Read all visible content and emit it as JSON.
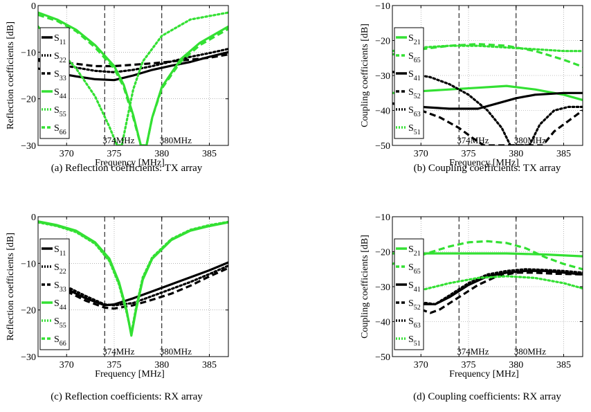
{
  "chart_data": [
    {
      "type": "line",
      "caption": "(a) Reflection coefficients: TX array",
      "xlabel": "Frequency [MHz]",
      "ylabel": "Reflection coefficients [dB]",
      "xlim": [
        367,
        387
      ],
      "ylim": [
        -30,
        0
      ],
      "xticks": [
        370,
        375,
        380,
        385
      ],
      "yticks": [
        -30,
        -20,
        -10,
        0
      ],
      "grid": true,
      "legend_position": "left",
      "markers": [
        {
          "x": 374,
          "label": "374MHz"
        },
        {
          "x": 380,
          "label": "380MHz"
        }
      ],
      "series": [
        {
          "name": "S11",
          "sub": "11",
          "color": "#000000",
          "style": "solid",
          "x": [
            367,
            369,
            371,
            373,
            375,
            377,
            379,
            381,
            383,
            385,
            387
          ],
          "y": [
            -13.5,
            -14.5,
            -15.2,
            -15.8,
            -16.0,
            -15.0,
            -13.8,
            -12.9,
            -12.1,
            -11.0,
            -10.0
          ]
        },
        {
          "name": "S22",
          "sub": "22",
          "color": "#000000",
          "style": "dotted",
          "x": [
            367,
            369,
            371,
            373,
            375,
            377,
            379,
            381,
            383,
            385,
            387
          ],
          "y": [
            -11.8,
            -12.6,
            -13.3,
            -14.0,
            -14.3,
            -13.8,
            -13.0,
            -12.0,
            -11.0,
            -10.2,
            -9.3
          ]
        },
        {
          "name": "S33",
          "sub": "33",
          "color": "#000000",
          "style": "dashed",
          "x": [
            367,
            369,
            371,
            373,
            375,
            377,
            379,
            381,
            383,
            385,
            387
          ],
          "y": [
            -11.5,
            -12.0,
            -12.5,
            -13.0,
            -13.0,
            -12.7,
            -12.4,
            -12.0,
            -11.6,
            -11.2,
            -10.5
          ]
        },
        {
          "name": "S44",
          "sub": "44",
          "color": "#33e033",
          "style": "solid",
          "x": [
            367,
            369,
            371,
            373,
            375,
            376,
            377,
            377.8,
            378.4,
            379,
            380,
            382,
            384,
            387
          ],
          "y": [
            -1.5,
            -3.0,
            -5.2,
            -8.5,
            -13.0,
            -17.0,
            -23.5,
            -30.0,
            -30.0,
            -24.0,
            -17.5,
            -11.5,
            -8.0,
            -4.5
          ]
        },
        {
          "name": "S55",
          "sub": "55",
          "color": "#33e033",
          "style": "dotted",
          "x": [
            367,
            369,
            371,
            373,
            374.5,
            375.3,
            375.8,
            376.4,
            377,
            378,
            380,
            383,
            387
          ],
          "y": [
            -4.5,
            -9.0,
            -13.5,
            -19.5,
            -26.0,
            -30.0,
            -30.0,
            -24.0,
            -18.0,
            -12.0,
            -6.5,
            -3.0,
            -1.5
          ]
        },
        {
          "name": "S66",
          "sub": "66",
          "color": "#33e033",
          "style": "dashed",
          "x": [
            367,
            369,
            371,
            373,
            375,
            376,
            377,
            377.8,
            378.4,
            379,
            380,
            382,
            384,
            387
          ],
          "y": [
            -2.0,
            -3.3,
            -5.5,
            -9.0,
            -13.5,
            -17.5,
            -24.0,
            -30.0,
            -30.0,
            -24.0,
            -17.8,
            -12.0,
            -8.5,
            -5.0
          ]
        }
      ]
    },
    {
      "type": "line",
      "caption": "(b) Coupling coefficients: TX array",
      "xlabel": "Frequency [MHz]",
      "ylabel": "Coupling coefficients [dB]",
      "xlim": [
        367,
        387
      ],
      "ylim": [
        -50,
        -10
      ],
      "xticks": [
        370,
        375,
        380,
        385
      ],
      "yticks": [
        -50,
        -40,
        -30,
        -20,
        -10
      ],
      "grid": true,
      "legend_position": "left",
      "markers": [
        {
          "x": 374,
          "label": "374MHz"
        },
        {
          "x": 380,
          "label": "380MHz"
        }
      ],
      "series": [
        {
          "name": "S21",
          "sub": "21",
          "color": "#33e033",
          "style": "solid",
          "x": [
            367,
            370,
            373,
            376,
            379,
            382,
            385,
            387
          ],
          "y": [
            -35.0,
            -34.5,
            -34.0,
            -33.5,
            -33.0,
            -34.0,
            -35.5,
            -37.0
          ]
        },
        {
          "name": "S65",
          "sub": "65",
          "color": "#33e033",
          "style": "dashed",
          "x": [
            367,
            370,
            373,
            376,
            379,
            382,
            385,
            387
          ],
          "y": [
            -24.0,
            -22.5,
            -21.5,
            -21.0,
            -21.5,
            -23.0,
            -25.5,
            -27.5
          ]
        },
        {
          "name": "S41",
          "sub": "41",
          "color": "#000000",
          "style": "solid",
          "x": [
            367,
            370,
            373,
            376,
            378,
            380,
            382,
            385,
            387
          ],
          "y": [
            -38.0,
            -39.0,
            -39.5,
            -39.5,
            -38.0,
            -36.5,
            -35.5,
            -35.0,
            -35.0
          ]
        },
        {
          "name": "S52",
          "sub": "52",
          "color": "#000000",
          "style": "dashed",
          "x": [
            367,
            370,
            372,
            374,
            375.5,
            376.6,
            377.2,
            382.8,
            384,
            385.5,
            387
          ],
          "y": [
            -38.0,
            -40.0,
            -42.0,
            -45.0,
            -48.0,
            -50.0,
            -50.0,
            -50.0,
            -46.0,
            -43.0,
            -40.0
          ]
        },
        {
          "name": "S63",
          "sub": "63",
          "color": "#000000",
          "style": "dotted",
          "x": [
            367,
            369,
            371,
            373,
            375,
            377,
            378.5,
            379.4,
            381.4,
            382.5,
            384,
            385.5,
            387
          ],
          "y": [
            -29.0,
            -29.5,
            -30.5,
            -32.5,
            -35.5,
            -40.0,
            -45.0,
            -50.0,
            -50.0,
            -44.0,
            -40.0,
            -39.0,
            -39.0
          ]
        },
        {
          "name": "S51",
          "sub": "51",
          "color": "#33e033",
          "style": "dotted",
          "x": [
            367,
            370,
            373,
            376,
            379,
            382,
            385,
            387
          ],
          "y": [
            -23.0,
            -22.0,
            -21.5,
            -21.5,
            -22.0,
            -22.5,
            -23.0,
            -23.0
          ]
        }
      ]
    },
    {
      "type": "line",
      "caption": "(c) Reflection coefficients: RX array",
      "xlabel": "Frequency [MHz]",
      "ylabel": "Reflection coefficients [dB]",
      "xlim": [
        367,
        387
      ],
      "ylim": [
        -30,
        0
      ],
      "xticks": [
        370,
        375,
        380,
        385
      ],
      "yticks": [
        -30,
        -20,
        -10,
        0
      ],
      "grid": true,
      "legend_position": "left",
      "markers": [
        {
          "x": 374,
          "label": "374MHz"
        },
        {
          "x": 380,
          "label": "380MHz"
        }
      ],
      "series": [
        {
          "name": "S11",
          "sub": "11",
          "color": "#000000",
          "style": "solid",
          "x": [
            370,
            372,
            374,
            375,
            377,
            379,
            381,
            383,
            385,
            387
          ],
          "y": [
            -15.5,
            -17.5,
            -19.0,
            -18.8,
            -17.5,
            -16.0,
            -14.5,
            -13.0,
            -11.5,
            -9.8
          ]
        },
        {
          "name": "S22",
          "sub": "22",
          "color": "#000000",
          "style": "dotted",
          "x": [
            370,
            372,
            374,
            375,
            377,
            379,
            381,
            383,
            385,
            387
          ],
          "y": [
            -15.0,
            -17.0,
            -18.8,
            -19.0,
            -18.5,
            -17.0,
            -15.5,
            -14.0,
            -12.3,
            -10.5
          ]
        },
        {
          "name": "S33",
          "sub": "33",
          "color": "#000000",
          "style": "dashed",
          "x": [
            370,
            372,
            374,
            375,
            377,
            379,
            381,
            383,
            385,
            387
          ],
          "y": [
            -16.0,
            -18.0,
            -19.5,
            -19.7,
            -19.0,
            -17.8,
            -16.5,
            -14.8,
            -12.8,
            -11.0
          ]
        },
        {
          "name": "S44",
          "sub": "44",
          "color": "#33e033",
          "style": "solid",
          "x": [
            367,
            369,
            371,
            373,
            374.5,
            375.5,
            376.3,
            376.8,
            377.3,
            378,
            379,
            381,
            383,
            385,
            387
          ],
          "y": [
            -1.0,
            -1.8,
            -3.0,
            -5.5,
            -9.0,
            -14.0,
            -20.0,
            -25.5,
            -20.0,
            -13.5,
            -9.0,
            -5.0,
            -3.0,
            -2.0,
            -1.2
          ]
        },
        {
          "name": "S55",
          "sub": "55",
          "color": "#33e033",
          "style": "dotted",
          "x": [
            367,
            369,
            371,
            373,
            374.5,
            375.5,
            376.3,
            376.8,
            377.3,
            378,
            379,
            381,
            383,
            385,
            387
          ],
          "y": [
            -1.2,
            -2.0,
            -3.3,
            -5.8,
            -9.5,
            -14.5,
            -20.5,
            -25.0,
            -19.5,
            -13.0,
            -8.7,
            -4.8,
            -2.8,
            -1.8,
            -1.1
          ]
        },
        {
          "name": "S66",
          "sub": "66",
          "color": "#33e033",
          "style": "dashed",
          "x": [
            367,
            369,
            371,
            373,
            374.5,
            375.5,
            376.3,
            376.8,
            377.3,
            378,
            379,
            381,
            383,
            385,
            387
          ],
          "y": [
            -1.1,
            -1.9,
            -3.1,
            -5.6,
            -9.2,
            -14.2,
            -20.2,
            -25.2,
            -19.8,
            -13.3,
            -8.9,
            -4.9,
            -2.9,
            -1.9,
            -1.15
          ]
        }
      ]
    },
    {
      "type": "line",
      "caption": "(d) Coupling coefficients: RX array",
      "xlabel": "Frequency [MHz]",
      "ylabel": "Coupling coefficients [dB]",
      "xlim": [
        367,
        387
      ],
      "ylim": [
        -50,
        -10
      ],
      "xticks": [
        370,
        375,
        380,
        385
      ],
      "yticks": [
        -50,
        -40,
        -30,
        -20,
        -10
      ],
      "grid": true,
      "legend_position": "left",
      "markers": [
        {
          "x": 374,
          "label": "374MHz"
        },
        {
          "x": 380,
          "label": "380MHz"
        }
      ],
      "series": [
        {
          "name": "S21",
          "sub": "21",
          "color": "#33e033",
          "style": "solid",
          "x": [
            367,
            371,
            375,
            379,
            383,
            387
          ],
          "y": [
            -20.5,
            -20.5,
            -20.5,
            -20.5,
            -20.8,
            -21.3
          ]
        },
        {
          "name": "S65",
          "sub": "65",
          "color": "#33e033",
          "style": "dashed",
          "x": [
            367,
            370,
            373,
            375,
            377,
            379,
            381,
            383,
            385,
            387
          ],
          "y": [
            -23.5,
            -21.0,
            -18.5,
            -17.3,
            -17.0,
            -17.5,
            -19.0,
            -21.5,
            -23.5,
            -25.0
          ]
        },
        {
          "name": "S41",
          "sub": "41",
          "color": "#000000",
          "style": "solid",
          "x": [
            370,
            371.5,
            373,
            375,
            377,
            379,
            381,
            383,
            385,
            387
          ],
          "y": [
            -35.0,
            -35.0,
            -33.0,
            -29.5,
            -27.0,
            -26.0,
            -25.5,
            -25.5,
            -26.0,
            -26.5
          ]
        },
        {
          "name": "S52",
          "sub": "52",
          "color": "#000000",
          "style": "dashed",
          "x": [
            370,
            371,
            372,
            374,
            376,
            378,
            380,
            382,
            384,
            387
          ],
          "y": [
            -36.5,
            -37.5,
            -36.5,
            -33.0,
            -29.5,
            -27.0,
            -26.0,
            -26.0,
            -26.3,
            -26.5
          ]
        },
        {
          "name": "S63",
          "sub": "63",
          "color": "#000000",
          "style": "dotted",
          "x": [
            370,
            371.5,
            373,
            375,
            377,
            379,
            381,
            383,
            385,
            387
          ],
          "y": [
            -34.5,
            -35.0,
            -32.5,
            -29.0,
            -26.5,
            -25.5,
            -25.0,
            -25.2,
            -25.5,
            -26.0
          ]
        },
        {
          "name": "S51",
          "sub": "51",
          "color": "#33e033",
          "style": "dotted",
          "x": [
            370,
            373,
            376,
            379,
            382,
            385,
            387
          ],
          "y": [
            -31.0,
            -29.0,
            -27.5,
            -27.0,
            -27.5,
            -29.0,
            -30.5
          ]
        }
      ]
    }
  ]
}
